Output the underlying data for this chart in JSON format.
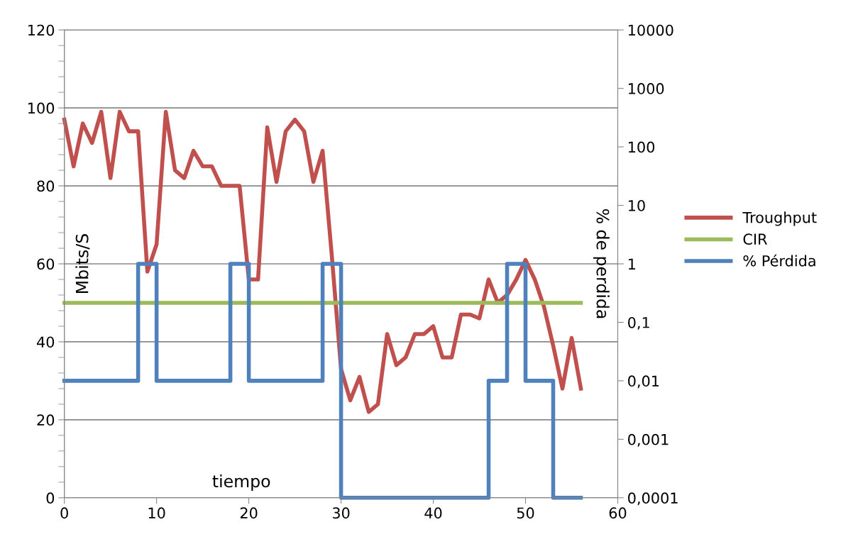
{
  "chart_data": {
    "type": "line",
    "xlabel": "tiempo",
    "ylabel": "Mbits/S",
    "y2label": "% de perdida",
    "xlim": [
      0,
      60
    ],
    "xticks": [
      0,
      10,
      20,
      30,
      40,
      50,
      60
    ],
    "ylim": [
      0,
      120
    ],
    "yticks": [
      0,
      20,
      40,
      60,
      80,
      100,
      120
    ],
    "y2lim": [
      0.0001,
      10000
    ],
    "y2ticks": [
      {
        "value": 0.0001,
        "label": "0,0001"
      },
      {
        "value": 0.001,
        "label": "0,001"
      },
      {
        "value": 0.01,
        "label": "0,01"
      },
      {
        "value": 0.1,
        "label": "0,1"
      },
      1,
      10,
      100,
      1000,
      10000
    ],
    "log": "y2",
    "grid": "y",
    "legend": "right",
    "marker": "none",
    "line_style": "solid",
    "series": [
      {
        "name": "Troughput",
        "color": "#c0504d",
        "x": [
          0,
          1,
          2,
          3,
          4,
          5,
          6,
          7,
          8,
          9,
          10,
          11,
          12,
          13,
          14,
          15,
          16,
          17,
          18,
          19,
          20,
          21,
          22,
          23,
          24,
          25,
          26,
          27,
          28,
          29,
          30,
          31,
          32,
          33,
          34,
          35,
          36,
          37,
          38,
          39,
          40,
          41,
          42,
          43,
          44,
          45,
          46,
          47,
          48,
          49,
          50,
          51,
          52,
          53,
          54,
          55,
          56
        ],
        "values": [
          97,
          85,
          96,
          91,
          99,
          82,
          99,
          94,
          94,
          58,
          65,
          99,
          84,
          82,
          89,
          85,
          85,
          80,
          80,
          80,
          56,
          56,
          95,
          81,
          94,
          97,
          94,
          81,
          89,
          62,
          33,
          25,
          31,
          22,
          24,
          42,
          34,
          36,
          42,
          42,
          44,
          36,
          36,
          47,
          47,
          46,
          56,
          50,
          52,
          56,
          61,
          56,
          49,
          39,
          28,
          41,
          28
        ]
      },
      {
        "name": "CIR",
        "color": "#9bbb59",
        "x": [
          0,
          56
        ],
        "values": [
          50,
          50
        ]
      },
      {
        "name": "% Pérdida",
        "color": "#4f81bd",
        "type": "step",
        "axis": "y2",
        "x": [
          0,
          8,
          10,
          18,
          20,
          28,
          30,
          46,
          48,
          50,
          53,
          56
        ],
        "values": [
          0.01,
          1,
          0.01,
          1,
          0.01,
          1,
          0.0001,
          0.01,
          1,
          0.01,
          0.0001,
          0.0001
        ]
      }
    ]
  }
}
